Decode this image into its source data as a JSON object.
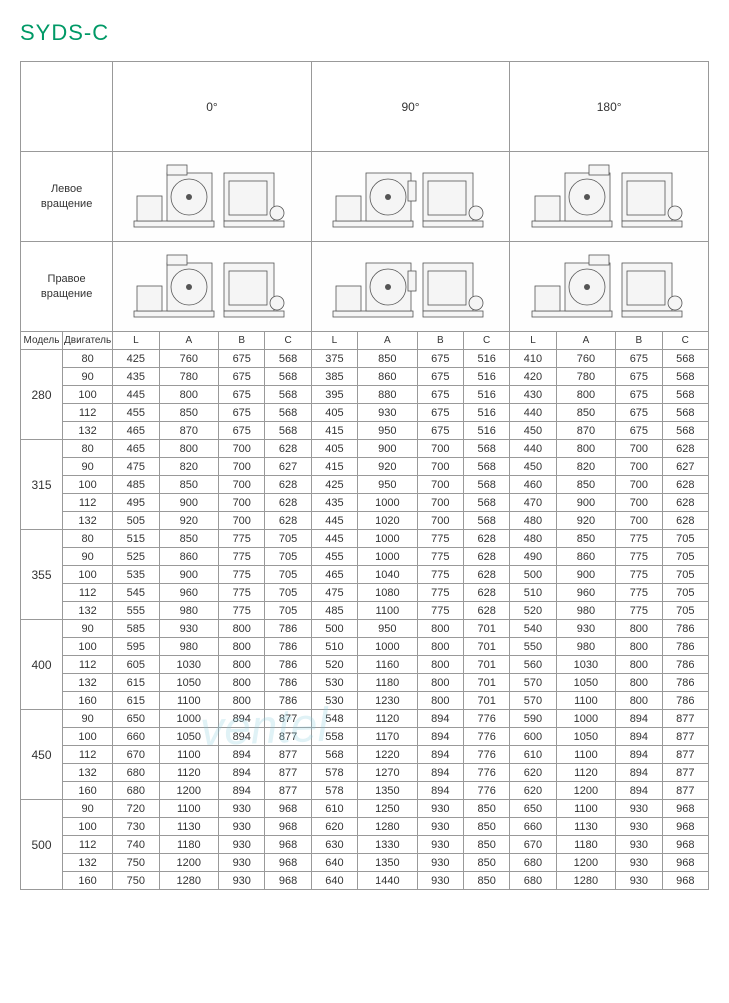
{
  "title": "SYDS-C",
  "angles": [
    "0°",
    "90°",
    "180°"
  ],
  "rotation_labels": {
    "left": "Левое\nвращение",
    "right": "Правое\nвращение"
  },
  "model_header": "Модель",
  "motor_header": "Двигатель",
  "col_labels": [
    "L",
    "A",
    "B",
    "C"
  ],
  "colors": {
    "title": "#009966",
    "border": "#999999",
    "text": "#333333",
    "watermark": "#88ccdd"
  },
  "font_sizes": {
    "title": 22,
    "body": 11,
    "header": 12
  },
  "watermark_text": "ventel",
  "models": [
    {
      "model": "280",
      "rows": [
        {
          "motor": "80",
          "d": [
            [
              "425",
              "760",
              "675",
              "568"
            ],
            [
              "375",
              "850",
              "675",
              "516"
            ],
            [
              "410",
              "760",
              "675",
              "568"
            ]
          ]
        },
        {
          "motor": "90",
          "d": [
            [
              "435",
              "780",
              "675",
              "568"
            ],
            [
              "385",
              "860",
              "675",
              "516"
            ],
            [
              "420",
              "780",
              "675",
              "568"
            ]
          ]
        },
        {
          "motor": "100",
          "d": [
            [
              "445",
              "800",
              "675",
              "568"
            ],
            [
              "395",
              "880",
              "675",
              "516"
            ],
            [
              "430",
              "800",
              "675",
              "568"
            ]
          ]
        },
        {
          "motor": "112",
          "d": [
            [
              "455",
              "850",
              "675",
              "568"
            ],
            [
              "405",
              "930",
              "675",
              "516"
            ],
            [
              "440",
              "850",
              "675",
              "568"
            ]
          ]
        },
        {
          "motor": "132",
          "d": [
            [
              "465",
              "870",
              "675",
              "568"
            ],
            [
              "415",
              "950",
              "675",
              "516"
            ],
            [
              "450",
              "870",
              "675",
              "568"
            ]
          ]
        }
      ]
    },
    {
      "model": "315",
      "rows": [
        {
          "motor": "80",
          "d": [
            [
              "465",
              "800",
              "700",
              "628"
            ],
            [
              "405",
              "900",
              "700",
              "568"
            ],
            [
              "440",
              "800",
              "700",
              "628"
            ]
          ]
        },
        {
          "motor": "90",
          "d": [
            [
              "475",
              "820",
              "700",
              "627"
            ],
            [
              "415",
              "920",
              "700",
              "568"
            ],
            [
              "450",
              "820",
              "700",
              "627"
            ]
          ]
        },
        {
          "motor": "100",
          "d": [
            [
              "485",
              "850",
              "700",
              "628"
            ],
            [
              "425",
              "950",
              "700",
              "568"
            ],
            [
              "460",
              "850",
              "700",
              "628"
            ]
          ]
        },
        {
          "motor": "112",
          "d": [
            [
              "495",
              "900",
              "700",
              "628"
            ],
            [
              "435",
              "1000",
              "700",
              "568"
            ],
            [
              "470",
              "900",
              "700",
              "628"
            ]
          ]
        },
        {
          "motor": "132",
          "d": [
            [
              "505",
              "920",
              "700",
              "628"
            ],
            [
              "445",
              "1020",
              "700",
              "568"
            ],
            [
              "480",
              "920",
              "700",
              "628"
            ]
          ]
        }
      ]
    },
    {
      "model": "355",
      "rows": [
        {
          "motor": "80",
          "d": [
            [
              "515",
              "850",
              "775",
              "705"
            ],
            [
              "445",
              "1000",
              "775",
              "628"
            ],
            [
              "480",
              "850",
              "775",
              "705"
            ]
          ]
        },
        {
          "motor": "90",
          "d": [
            [
              "525",
              "860",
              "775",
              "705"
            ],
            [
              "455",
              "1000",
              "775",
              "628"
            ],
            [
              "490",
              "860",
              "775",
              "705"
            ]
          ]
        },
        {
          "motor": "100",
          "d": [
            [
              "535",
              "900",
              "775",
              "705"
            ],
            [
              "465",
              "1040",
              "775",
              "628"
            ],
            [
              "500",
              "900",
              "775",
              "705"
            ]
          ]
        },
        {
          "motor": "112",
          "d": [
            [
              "545",
              "960",
              "775",
              "705"
            ],
            [
              "475",
              "1080",
              "775",
              "628"
            ],
            [
              "510",
              "960",
              "775",
              "705"
            ]
          ]
        },
        {
          "motor": "132",
          "d": [
            [
              "555",
              "980",
              "775",
              "705"
            ],
            [
              "485",
              "1100",
              "775",
              "628"
            ],
            [
              "520",
              "980",
              "775",
              "705"
            ]
          ]
        }
      ]
    },
    {
      "model": "400",
      "rows": [
        {
          "motor": "90",
          "d": [
            [
              "585",
              "930",
              "800",
              "786"
            ],
            [
              "500",
              "950",
              "800",
              "701"
            ],
            [
              "540",
              "930",
              "800",
              "786"
            ]
          ]
        },
        {
          "motor": "100",
          "d": [
            [
              "595",
              "980",
              "800",
              "786"
            ],
            [
              "510",
              "1000",
              "800",
              "701"
            ],
            [
              "550",
              "980",
              "800",
              "786"
            ]
          ]
        },
        {
          "motor": "112",
          "d": [
            [
              "605",
              "1030",
              "800",
              "786"
            ],
            [
              "520",
              "1160",
              "800",
              "701"
            ],
            [
              "560",
              "1030",
              "800",
              "786"
            ]
          ]
        },
        {
          "motor": "132",
          "d": [
            [
              "615",
              "1050",
              "800",
              "786"
            ],
            [
              "530",
              "1180",
              "800",
              "701"
            ],
            [
              "570",
              "1050",
              "800",
              "786"
            ]
          ]
        },
        {
          "motor": "160",
          "d": [
            [
              "615",
              "1100",
              "800",
              "786"
            ],
            [
              "530",
              "1230",
              "800",
              "701"
            ],
            [
              "570",
              "1100",
              "800",
              "786"
            ]
          ]
        }
      ]
    },
    {
      "model": "450",
      "rows": [
        {
          "motor": "90",
          "d": [
            [
              "650",
              "1000",
              "894",
              "877"
            ],
            [
              "548",
              "1120",
              "894",
              "776"
            ],
            [
              "590",
              "1000",
              "894",
              "877"
            ]
          ]
        },
        {
          "motor": "100",
          "d": [
            [
              "660",
              "1050",
              "894",
              "877"
            ],
            [
              "558",
              "1170",
              "894",
              "776"
            ],
            [
              "600",
              "1050",
              "894",
              "877"
            ]
          ]
        },
        {
          "motor": "112",
          "d": [
            [
              "670",
              "1100",
              "894",
              "877"
            ],
            [
              "568",
              "1220",
              "894",
              "776"
            ],
            [
              "610",
              "1100",
              "894",
              "877"
            ]
          ]
        },
        {
          "motor": "132",
          "d": [
            [
              "680",
              "1120",
              "894",
              "877"
            ],
            [
              "578",
              "1270",
              "894",
              "776"
            ],
            [
              "620",
              "1120",
              "894",
              "877"
            ]
          ]
        },
        {
          "motor": "160",
          "d": [
            [
              "680",
              "1200",
              "894",
              "877"
            ],
            [
              "578",
              "1350",
              "894",
              "776"
            ],
            [
              "620",
              "1200",
              "894",
              "877"
            ]
          ]
        }
      ]
    },
    {
      "model": "500",
      "rows": [
        {
          "motor": "90",
          "d": [
            [
              "720",
              "1100",
              "930",
              "968"
            ],
            [
              "610",
              "1250",
              "930",
              "850"
            ],
            [
              "650",
              "1100",
              "930",
              "968"
            ]
          ]
        },
        {
          "motor": "100",
          "d": [
            [
              "730",
              "1130",
              "930",
              "968"
            ],
            [
              "620",
              "1280",
              "930",
              "850"
            ],
            [
              "660",
              "1130",
              "930",
              "968"
            ]
          ]
        },
        {
          "motor": "112",
          "d": [
            [
              "740",
              "1180",
              "930",
              "968"
            ],
            [
              "630",
              "1330",
              "930",
              "850"
            ],
            [
              "670",
              "1180",
              "930",
              "968"
            ]
          ]
        },
        {
          "motor": "132",
          "d": [
            [
              "750",
              "1200",
              "930",
              "968"
            ],
            [
              "640",
              "1350",
              "930",
              "850"
            ],
            [
              "680",
              "1200",
              "930",
              "968"
            ]
          ]
        },
        {
          "motor": "160",
          "d": [
            [
              "750",
              "1280",
              "930",
              "968"
            ],
            [
              "640",
              "1440",
              "930",
              "850"
            ],
            [
              "680",
              "1280",
              "930",
              "968"
            ]
          ]
        }
      ]
    }
  ],
  "diagram_style": {
    "stroke": "#555555",
    "stroke_width": 0.8,
    "fill": "#f5f5f5"
  }
}
